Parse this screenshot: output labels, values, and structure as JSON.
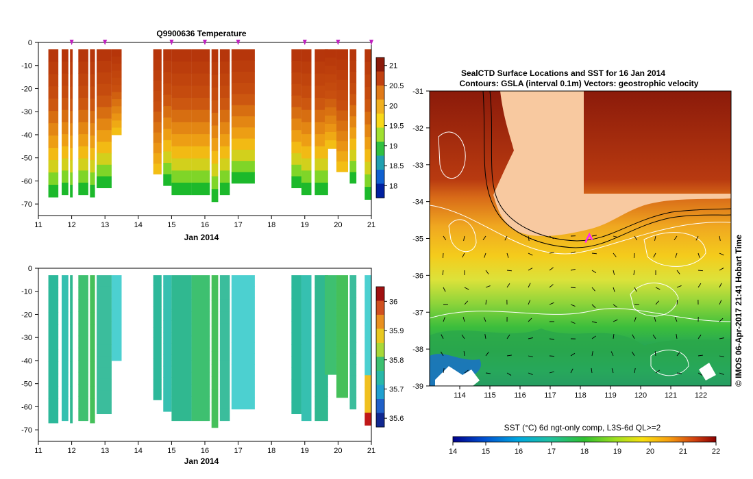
{
  "chart_data": [
    {
      "type": "heatmap",
      "title": "Q9900636  Temperature",
      "xlabel": "Jan 2014",
      "ylabel": "",
      "xlim": [
        11,
        21
      ],
      "ylim": [
        -75,
        0
      ],
      "x_ticks": [
        "11",
        "12",
        "13",
        "14",
        "15",
        "16",
        "17",
        "18",
        "19",
        "20",
        "21"
      ],
      "y_ticks": [
        "0",
        "-10",
        "-20",
        "-30",
        "-40",
        "-50",
        "-60",
        "-70"
      ],
      "colorbar_ticks": [
        "21",
        "20.5",
        "20",
        "19.5",
        "19",
        "18.5",
        "18"
      ],
      "colorbar_range": [
        17.7,
        21.2
      ],
      "profile_markers_day": [
        12,
        13,
        15,
        16,
        17,
        19,
        20,
        21
      ],
      "profiles": [
        {
          "x": 11.3,
          "w": 0.3,
          "bottom": -67
        },
        {
          "x": 11.7,
          "w": 0.2,
          "bottom": -66
        },
        {
          "x": 11.95,
          "w": 0.08,
          "bottom": -67
        },
        {
          "x": 12.2,
          "w": 0.3,
          "bottom": -66
        },
        {
          "x": 12.55,
          "w": 0.15,
          "bottom": -67
        },
        {
          "x": 12.75,
          "w": 0.45,
          "bottom": -63
        },
        {
          "x": 13.2,
          "w": 0.3,
          "bottom": -40
        },
        {
          "x": 14.45,
          "w": 0.25,
          "bottom": -57
        },
        {
          "x": 14.75,
          "w": 0.25,
          "bottom": -62
        },
        {
          "x": 15.0,
          "w": 0.6,
          "bottom": -66
        },
        {
          "x": 15.6,
          "w": 0.55,
          "bottom": -66
        },
        {
          "x": 16.2,
          "w": 0.2,
          "bottom": -69
        },
        {
          "x": 16.45,
          "w": 0.3,
          "bottom": -66
        },
        {
          "x": 16.8,
          "w": 0.7,
          "bottom": -61
        },
        {
          "x": 18.6,
          "w": 0.3,
          "bottom": -63
        },
        {
          "x": 18.9,
          "w": 0.3,
          "bottom": -66
        },
        {
          "x": 19.3,
          "w": 0.4,
          "bottom": -66
        },
        {
          "x": 19.6,
          "w": 0.35,
          "bottom": -46
        },
        {
          "x": 19.95,
          "w": 0.35,
          "bottom": -56
        },
        {
          "x": 20.35,
          "w": 0.2,
          "bottom": -61
        },
        {
          "x": 20.8,
          "w": 0.2,
          "bottom": -68
        }
      ]
    },
    {
      "type": "heatmap",
      "title": "",
      "xlabel": "Jan 2014",
      "ylabel": "",
      "xlim": [
        11,
        21
      ],
      "ylim": [
        -75,
        0
      ],
      "x_ticks": [
        "11",
        "12",
        "13",
        "14",
        "15",
        "16",
        "17",
        "18",
        "19",
        "20",
        "21"
      ],
      "y_ticks": [
        "0",
        "-10",
        "-20",
        "-30",
        "-40",
        "-50",
        "-60",
        "-70"
      ],
      "colorbar_ticks": [
        "36",
        "35.9",
        "35.8",
        "35.7",
        "35.6"
      ],
      "colorbar_range": [
        35.57,
        36.05
      ]
    },
    {
      "type": "heatmap",
      "title": "SealCTD Surface Locations and SST for 16 Jan 2014",
      "subtitle": "Contours: GSLA (interval 0.1m) Vectors: geostrophic velocity",
      "xlabel": "",
      "ylabel": "",
      "xlim": [
        113,
        123
      ],
      "ylim": [
        -39,
        -31
      ],
      "x_ticks": [
        "114",
        "115",
        "116",
        "117",
        "118",
        "119",
        "120",
        "121",
        "122"
      ],
      "y_ticks": [
        "-31",
        "-32",
        "-33",
        "-34",
        "-35",
        "-36",
        "-37",
        "-38",
        "-39"
      ],
      "colorbar_label": "SST (°C) 6d ngt-only comp, L3S-6d QL>=2",
      "colorbar_ticks": [
        "14",
        "15",
        "16",
        "17",
        "18",
        "19",
        "20",
        "21",
        "22"
      ],
      "colorbar_range": [
        14,
        22
      ],
      "seal_position": {
        "lon": 118.3,
        "lat": -35.0
      },
      "side_label": "© IMOS 06-Apr-2017 21:41 Hobart Time"
    }
  ]
}
